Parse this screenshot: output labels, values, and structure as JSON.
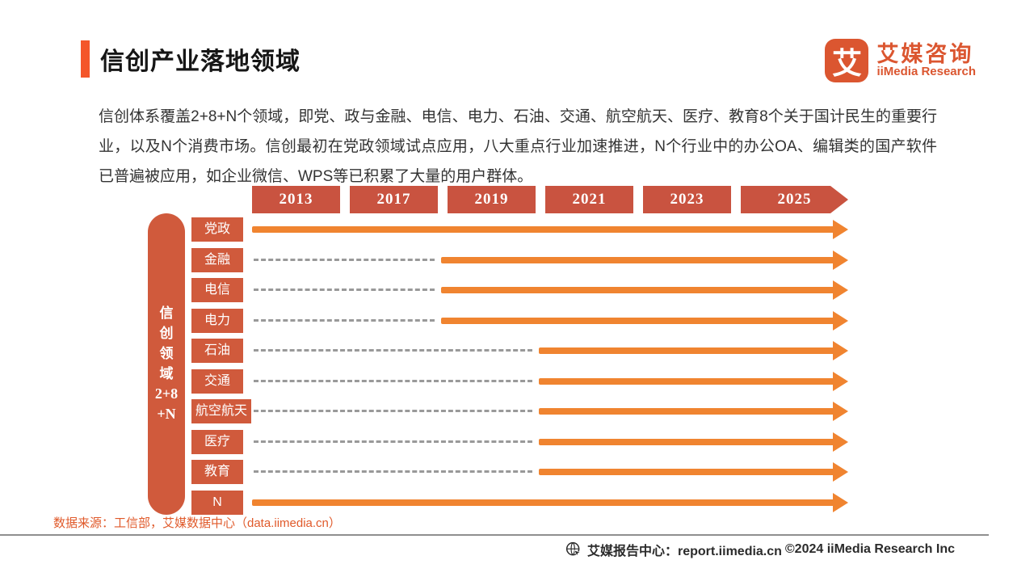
{
  "header": {
    "title": "信创产业落地领域",
    "logo": {
      "glyph": "艾",
      "name_cn": "艾媒咨询",
      "name_en": "iiMedia Research"
    }
  },
  "intro": {
    "text": "信创体系覆盖2+8+N个领域，即党、政与金融、电信、电力、石油、交通、航空航天、医疗、教育8个关于国计民生的重要行业，以及N个消费市场。信创最初在党政领域试点应用，八大重点行业加速推进，N个行业中的办公OA、编辑类的国产软件已普遍被应用，如企业微信、WPS等已积累了大量的用户群体。"
  },
  "chart_data": {
    "type": "timeline",
    "title": "信创产业落地领域",
    "years": [
      "2013",
      "2017",
      "2019",
      "2021",
      "2023",
      "2025"
    ],
    "group_label_lines": [
      "信",
      "创",
      "领",
      "域",
      "2+8",
      "+N"
    ],
    "group_label": "信创领域2+8+N",
    "rows": [
      {
        "label": "党政",
        "start_year": "2013",
        "status": "solid-from-start"
      },
      {
        "label": "金融",
        "start_year": "2019",
        "status": "dashed-then-solid"
      },
      {
        "label": "电信",
        "start_year": "2019",
        "status": "dashed-then-solid"
      },
      {
        "label": "电力",
        "start_year": "2019",
        "status": "dashed-then-solid"
      },
      {
        "label": "石油",
        "start_year": "2021",
        "status": "dashed-then-solid"
      },
      {
        "label": "交通",
        "start_year": "2021",
        "status": "dashed-then-solid"
      },
      {
        "label": "航空航天",
        "start_year": "2021",
        "status": "dashed-then-solid"
      },
      {
        "label": "医疗",
        "start_year": "2021",
        "status": "dashed-then-solid"
      },
      {
        "label": "教育",
        "start_year": "2021",
        "status": "dashed-then-solid"
      },
      {
        "label": "N",
        "start_year": "2013",
        "status": "solid-from-start"
      }
    ],
    "colors": {
      "accent": "#F4562A",
      "brick": "#C95340",
      "labelbox": "#D05A3C",
      "arrow": "#F08430",
      "dash": "#999999",
      "source": "#E05A2B",
      "logo": "#DB5630"
    }
  },
  "source": {
    "text": "数据来源：工信部，艾媒数据中心（data.iimedia.cn）"
  },
  "footer": {
    "report_center": "艾媒报告中心：report.iimedia.cn",
    "copyright": "©2024  iiMedia Research  Inc"
  }
}
